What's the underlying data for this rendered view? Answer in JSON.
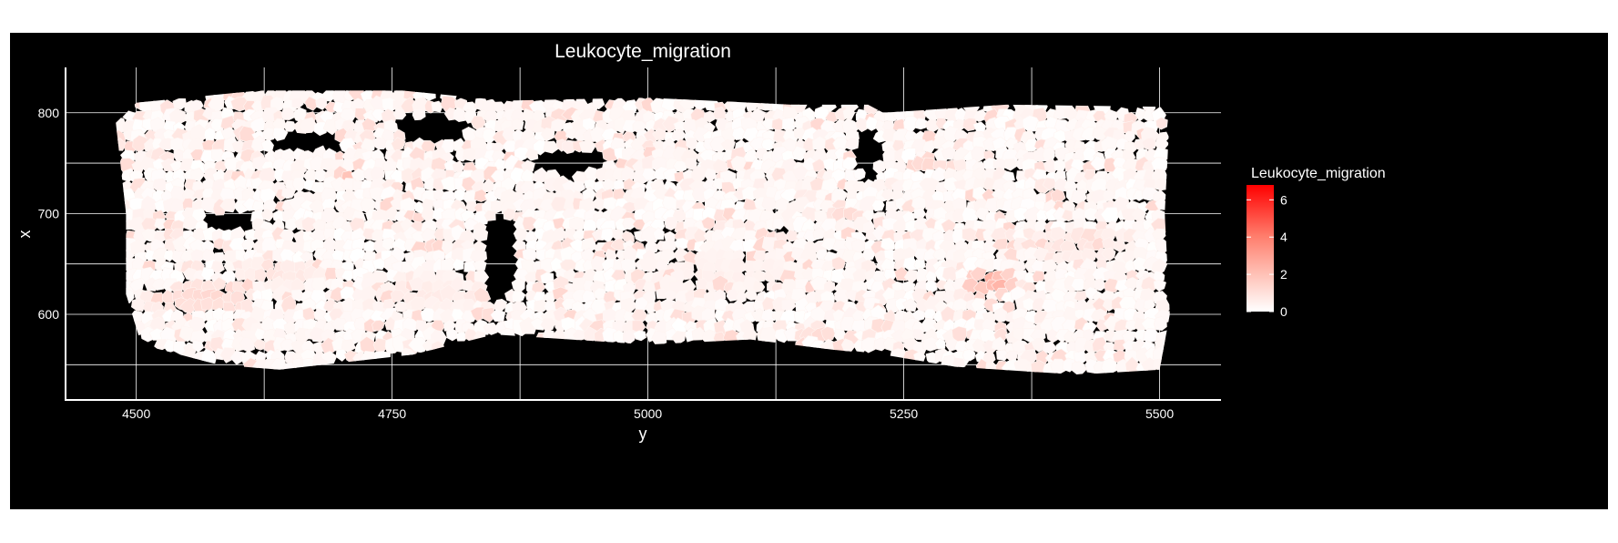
{
  "chart_data": {
    "type": "heatmap",
    "title": "Leukocyte_migration",
    "xlabel": "y",
    "ylabel": "x",
    "xlim": [
      4430,
      5560
    ],
    "ylim": [
      515,
      845
    ],
    "xticks": [
      4500,
      4750,
      5000,
      5250,
      5500
    ],
    "yticks": [
      600,
      700,
      800
    ],
    "x_minor_gridlines": [
      4625,
      4875,
      5125,
      5375
    ],
    "y_minor_gridlines": [
      550,
      650,
      750
    ],
    "grid": true,
    "legend": {
      "title": "Leukocyte_migration",
      "position": "right",
      "range": [
        0,
        6.8
      ],
      "ticks": [
        0,
        2,
        4,
        6
      ],
      "low_color": "#ffffff",
      "high_color": "#ff0000"
    },
    "domain_outline": [
      [
        4500,
        810
      ],
      [
        4620,
        822
      ],
      [
        4760,
        822
      ],
      [
        4860,
        812
      ],
      [
        5000,
        815
      ],
      [
        5140,
        808
      ],
      [
        5215,
        808
      ],
      [
        5230,
        800
      ],
      [
        5350,
        808
      ],
      [
        5500,
        806
      ],
      [
        5510,
        800
      ],
      [
        5505,
        700
      ],
      [
        5510,
        600
      ],
      [
        5500,
        545
      ],
      [
        5420,
        540
      ],
      [
        5300,
        548
      ],
      [
        5230,
        560
      ],
      [
        5180,
        565
      ],
      [
        5100,
        575
      ],
      [
        5000,
        570
      ],
      [
        4850,
        580
      ],
      [
        4770,
        560
      ],
      [
        4640,
        545
      ],
      [
        4580,
        550
      ],
      [
        4505,
        570
      ],
      [
        4490,
        620
      ],
      [
        4490,
        700
      ],
      [
        4480,
        790
      ]
    ],
    "holes": [
      {
        "center": [
          4590,
          693
        ],
        "radius": [
          25,
          12
        ]
      },
      {
        "center": [
          4670,
          770
        ],
        "radius": [
          35,
          10
        ]
      },
      {
        "center": [
          4790,
          785
        ],
        "radius": [
          40,
          14
        ]
      },
      {
        "center": [
          4925,
          750
        ],
        "radius": [
          35,
          12
        ]
      },
      {
        "center": [
          4855,
          655
        ],
        "radius": [
          18,
          45
        ]
      },
      {
        "center": [
          5215,
          760
        ],
        "radius": [
          12,
          25
        ]
      }
    ],
    "hotspots": [
      {
        "center": [
          5320,
          596
        ],
        "radius": 8,
        "value": 6.8
      },
      {
        "center": [
          5335,
          633
        ],
        "radius": 28,
        "value": 3.6
      },
      {
        "center": [
          4705,
          735
        ],
        "radius": 14,
        "value": 2.4
      },
      {
        "center": [
          4565,
          615
        ],
        "radius": 55,
        "value": 1.6
      },
      {
        "center": [
          4640,
          640
        ],
        "radius": 45,
        "value": 1.0
      },
      {
        "center": [
          5165,
          583
        ],
        "radius": 22,
        "value": 1.6
      },
      {
        "center": [
          5420,
          670
        ],
        "radius": 55,
        "value": 1.0
      },
      {
        "center": [
          4780,
          620
        ],
        "radius": 65,
        "value": 0.8
      },
      {
        "center": [
          5070,
          640
        ],
        "radius": 90,
        "value": 0.6
      }
    ],
    "n_cells": 1400,
    "seed": 7
  }
}
